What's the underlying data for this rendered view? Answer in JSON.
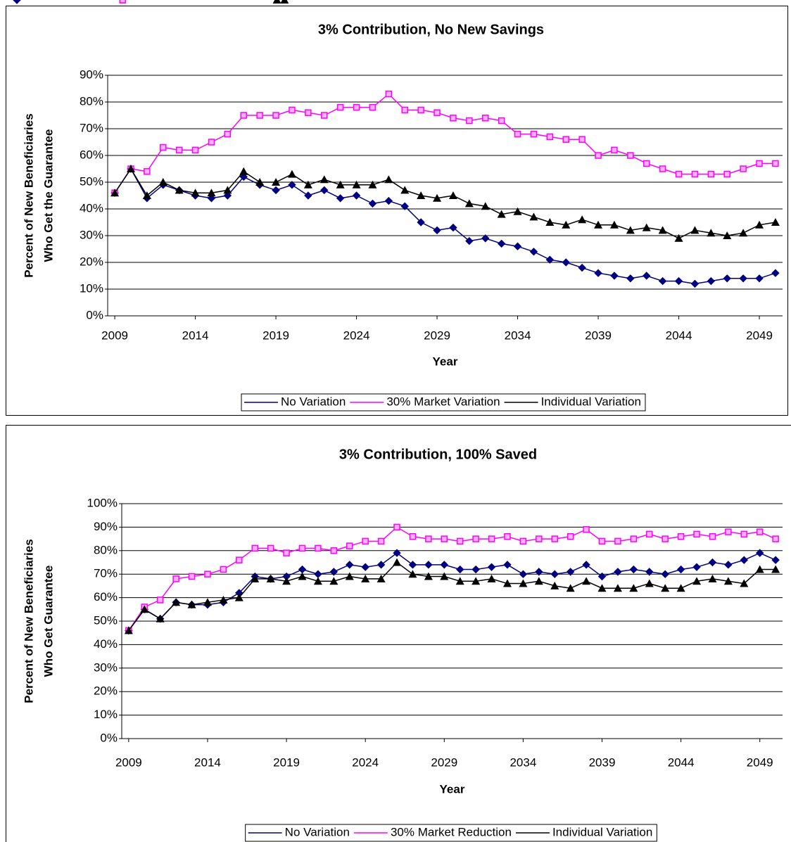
{
  "chart_data": [
    {
      "type": "line",
      "title": "3% Contribution, No New Savings",
      "x_label": "Year",
      "y_label": [
        "Percent of New Beneficiaries",
        "Who Get the Guarantee"
      ],
      "x": [
        2009,
        2010,
        2011,
        2012,
        2013,
        2014,
        2015,
        2016,
        2017,
        2018,
        2019,
        2020,
        2021,
        2022,
        2023,
        2024,
        2025,
        2026,
        2027,
        2028,
        2029,
        2030,
        2031,
        2032,
        2033,
        2034,
        2035,
        2036,
        2037,
        2038,
        2039,
        2040,
        2041,
        2042,
        2043,
        2044,
        2045,
        2046,
        2047,
        2048,
        2049,
        2050
      ],
      "xlim": [
        2008.56,
        2050.44
      ],
      "xticks": [
        2009,
        2014,
        2019,
        2024,
        2029,
        2034,
        2039,
        2044,
        2049
      ],
      "ylim": [
        0,
        90
      ],
      "yticks": [
        {
          "value": 0,
          "label": "0%"
        },
        {
          "value": 10,
          "label": "10%"
        },
        {
          "value": 20,
          "label": "20%"
        },
        {
          "value": 30,
          "label": "30%"
        },
        {
          "value": 40,
          "label": "40%"
        },
        {
          "value": 50,
          "label": "50%"
        },
        {
          "value": 60,
          "label": "60%"
        },
        {
          "value": 70,
          "label": "70%"
        },
        {
          "value": 80,
          "label": "80%"
        },
        {
          "value": 90,
          "label": "90%"
        }
      ],
      "grid": true,
      "legend": "bottom",
      "series": [
        {
          "name": "No Variation",
          "color": "#000080",
          "marker": "diamond",
          "values": [
            46,
            55,
            44,
            49,
            47,
            45,
            44,
            45,
            52,
            49,
            47,
            49,
            45,
            47,
            44,
            45,
            42,
            43,
            41,
            35,
            32,
            33,
            28,
            29,
            27,
            26,
            24,
            21,
            20,
            18,
            16,
            15,
            14,
            15,
            13,
            13,
            12,
            13,
            14,
            14,
            14,
            16
          ]
        },
        {
          "name": "30% Market Variation",
          "color": "#ff00ff",
          "marker": "square",
          "values": [
            46,
            55,
            54,
            63,
            62,
            62,
            65,
            68,
            75,
            75,
            75,
            77,
            76,
            75,
            78,
            78,
            78,
            83,
            77,
            77,
            76,
            74,
            73,
            74,
            73,
            68,
            68,
            67,
            66,
            66,
            60,
            62,
            60,
            57,
            55,
            53,
            53,
            53,
            53,
            55,
            57,
            57
          ]
        },
        {
          "name": "Individual Variation",
          "color": "#000000",
          "marker": "triangle",
          "values": [
            46,
            55,
            45,
            50,
            47,
            46,
            46,
            47,
            54,
            50,
            50,
            53,
            49,
            51,
            49,
            49,
            49,
            51,
            47,
            45,
            44,
            45,
            42,
            41,
            38,
            39,
            37,
            35,
            34,
            36,
            34,
            34,
            32,
            33,
            32,
            29,
            32,
            31,
            30,
            31,
            34,
            35
          ]
        }
      ]
    },
    {
      "type": "line",
      "title": "3% Contribution, 100% Saved",
      "x_label": "Year",
      "y_label": [
        "Percent of New Beneficiaries",
        "Who Get Guarantee"
      ],
      "x": [
        2009,
        2010,
        2011,
        2012,
        2013,
        2014,
        2015,
        2016,
        2017,
        2018,
        2019,
        2020,
        2021,
        2022,
        2023,
        2024,
        2025,
        2026,
        2027,
        2028,
        2029,
        2030,
        2031,
        2032,
        2033,
        2034,
        2035,
        2036,
        2037,
        2038,
        2039,
        2040,
        2041,
        2042,
        2043,
        2044,
        2045,
        2046,
        2047,
        2048,
        2049,
        2050
      ],
      "xlim": [
        2008.56,
        2050.44
      ],
      "xticks": [
        2009,
        2014,
        2019,
        2024,
        2029,
        2034,
        2039,
        2044,
        2049
      ],
      "ylim": [
        0,
        100
      ],
      "yticks": [
        {
          "value": 0,
          "label": "0%"
        },
        {
          "value": 10,
          "label": "10%"
        },
        {
          "value": 20,
          "label": "20%"
        },
        {
          "value": 30,
          "label": "30%"
        },
        {
          "value": 40,
          "label": "40%"
        },
        {
          "value": 50,
          "label": "50%"
        },
        {
          "value": 60,
          "label": "60%"
        },
        {
          "value": 70,
          "label": "70%"
        },
        {
          "value": 80,
          "label": "80%"
        },
        {
          "value": 90,
          "label": "90%"
        },
        {
          "value": 100,
          "label": "100%"
        }
      ],
      "grid": true,
      "legend": "bottom",
      "series": [
        {
          "name": "No Variation",
          "color": "#000080",
          "marker": "diamond",
          "values": [
            46,
            55,
            51,
            58,
            57,
            57,
            58,
            62,
            69,
            68,
            69,
            72,
            70,
            71,
            74,
            73,
            74,
            79,
            74,
            74,
            74,
            72,
            72,
            73,
            74,
            70,
            71,
            70,
            71,
            74,
            69,
            71,
            72,
            71,
            70,
            72,
            73,
            75,
            74,
            76,
            79,
            76
          ]
        },
        {
          "name": "30% Market Reduction",
          "color": "#ff00ff",
          "marker": "square",
          "values": [
            46,
            56,
            59,
            68,
            69,
            70,
            72,
            76,
            81,
            81,
            79,
            81,
            81,
            80,
            82,
            84,
            84,
            90,
            86,
            85,
            85,
            84,
            85,
            85,
            86,
            84,
            85,
            85,
            86,
            89,
            84,
            84,
            85,
            87,
            85,
            86,
            87,
            86,
            88,
            87,
            88,
            85
          ]
        },
        {
          "name": "Individual Variation",
          "color": "#000000",
          "marker": "triangle",
          "values": [
            46,
            55,
            51,
            58,
            57,
            58,
            59,
            60,
            68,
            68,
            67,
            69,
            67,
            67,
            69,
            68,
            68,
            75,
            70,
            69,
            69,
            67,
            67,
            68,
            66,
            66,
            67,
            65,
            64,
            67,
            64,
            64,
            64,
            66,
            64,
            64,
            67,
            68,
            67,
            66,
            72,
            72
          ]
        }
      ]
    }
  ]
}
